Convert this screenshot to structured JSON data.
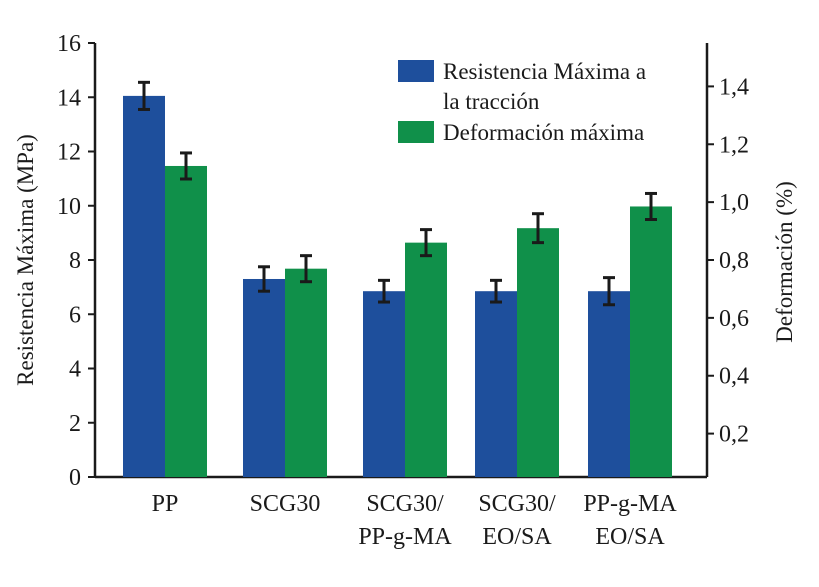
{
  "chart_data": {
    "type": "bar",
    "categories": [
      [
        "PP"
      ],
      [
        "SCG30"
      ],
      [
        "SCG30/",
        "PP-g-MA"
      ],
      [
        "SCG30/",
        "EO/SA"
      ],
      [
        "PP-g-MA",
        "EO/SA"
      ]
    ],
    "series": [
      {
        "name": "Resistencia Máxima a la tracción",
        "legend_lines": [
          "Resistencia Máxima a",
          "la tracción"
        ],
        "axis": "left",
        "color": "#1e4f9c",
        "values": [
          14.05,
          7.3,
          6.85,
          6.85,
          6.85
        ],
        "errors": [
          0.5,
          0.45,
          0.4,
          0.4,
          0.5
        ]
      },
      {
        "name": "Deformación máxima",
        "legend_lines": [
          "Deformación máxima"
        ],
        "axis": "right",
        "color": "#10904a",
        "values": [
          1.125,
          0.77,
          0.86,
          0.91,
          0.985
        ],
        "errors": [
          0.045,
          0.045,
          0.045,
          0.05,
          0.045
        ]
      }
    ],
    "ylabel": "Resistencia Máxima (MPa)",
    "ylabel_right": "Deformación (%)",
    "ylim": [
      0,
      16
    ],
    "ylim_right": [
      0.05,
      1.55
    ],
    "yticks": [
      {
        "value": 0,
        "label": "0"
      },
      {
        "value": 2,
        "label": "2"
      },
      {
        "value": 4,
        "label": "4"
      },
      {
        "value": 6,
        "label": "6"
      },
      {
        "value": 8,
        "label": "8"
      },
      {
        "value": 10,
        "label": "10"
      },
      {
        "value": 12,
        "label": "12"
      },
      {
        "value": 14,
        "label": "14"
      },
      {
        "value": 16,
        "label": "16"
      }
    ],
    "yticks_right": [
      {
        "value": 0.2,
        "label": "0,2"
      },
      {
        "value": 0.4,
        "label": "0,4"
      },
      {
        "value": 0.6,
        "label": "0,6"
      },
      {
        "value": 0.8,
        "label": "0,8"
      },
      {
        "value": 1.0,
        "label": "1,0"
      },
      {
        "value": 1.2,
        "label": "1,2"
      },
      {
        "value": 1.4,
        "label": "1,4"
      }
    ],
    "legend_position": "top-right",
    "grid": false
  }
}
